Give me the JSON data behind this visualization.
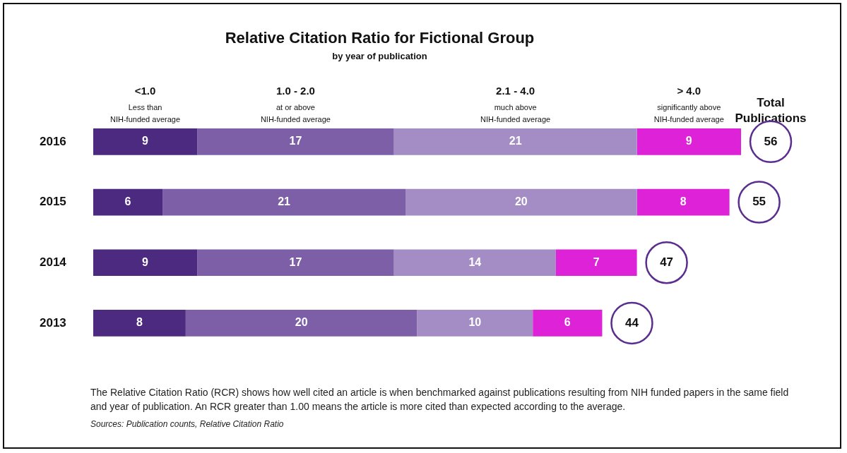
{
  "chart_data": {
    "type": "bar",
    "orientation": "horizontal",
    "stacked": true,
    "title": "Relative Citation Ratio for Fictional Group",
    "subtitle": "by year of publication",
    "categories": [
      "2016",
      "2015",
      "2014",
      "2013"
    ],
    "series": [
      {
        "name": "<1.0\nLess than\nNIH-funded average",
        "color": "#4b2a80",
        "values": [
          9,
          6,
          9,
          8
        ]
      },
      {
        "name": "1.0 - 2.0\nat or above\nNIH-funded average",
        "color": "#7d5fa8",
        "values": [
          17,
          21,
          17,
          20
        ]
      },
      {
        "name": "2.1 - 4.0\nmuch above\nNIH-funded average",
        "color": "#a48dc4",
        "values": [
          21,
          20,
          14,
          10
        ]
      },
      {
        "name": "> 4.0\nsignificantly above\nNIH-funded average",
        "color": "#de22d8",
        "values": [
          9,
          8,
          7,
          6
        ]
      }
    ],
    "xlim": [
      0,
      56
    ],
    "tick_labels": "y",
    "legend": "top",
    "data_labels": true,
    "legend_title": "Total\nPublications",
    "totals": [
      "56",
      "55",
      "47",
      "44"
    ],
    "annotations": [
      "The Relative Citation Ratio (RCR) shows how well cited an article is when benchmarked against publications resulting from NIH funded papers in the same field and year of publication. An RCR greater than 1.00 means the article is more cited than expected according to the average.",
      "Sources: Publication counts, Relative Citation Ratio"
    ]
  }
}
